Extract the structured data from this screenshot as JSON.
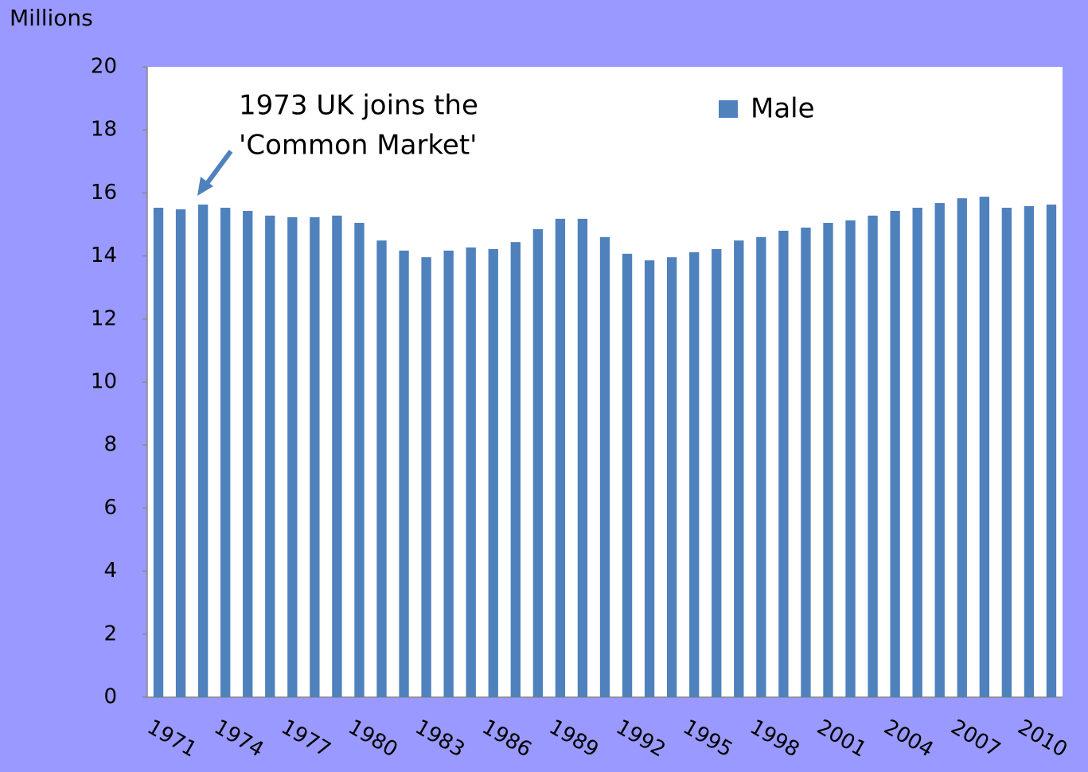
{
  "chart_data": {
    "type": "bar",
    "y_axis_label": "Millions",
    "annotation": [
      "1973 UK joins the",
      "'Common Market'"
    ],
    "categories": [
      "1971",
      null,
      null,
      "1974",
      null,
      null,
      "1977",
      null,
      null,
      "1980",
      null,
      null,
      "1983",
      null,
      null,
      "1986",
      null,
      null,
      "1989",
      null,
      null,
      "1992",
      null,
      null,
      "1995",
      null,
      null,
      "1998",
      null,
      null,
      "2001",
      null,
      null,
      "2004",
      null,
      null,
      "2007",
      null,
      null,
      "2010",
      null
    ],
    "series": [
      {
        "name": "Male",
        "color": "#4f81bd",
        "values": [
          15.53,
          15.48,
          15.63,
          15.53,
          15.43,
          15.28,
          15.23,
          15.23,
          15.28,
          15.05,
          14.49,
          14.17,
          13.96,
          14.17,
          14.27,
          14.22,
          14.44,
          14.85,
          15.18,
          15.18,
          14.6,
          14.07,
          13.86,
          13.96,
          14.12,
          14.22,
          14.49,
          14.6,
          14.8,
          14.9,
          15.05,
          15.13,
          15.28,
          15.43,
          15.53,
          15.68,
          15.83,
          15.88,
          15.53,
          15.58,
          15.63
        ]
      }
    ],
    "ylim": [
      0,
      20
    ],
    "yticks": [
      0,
      2,
      4,
      6,
      8,
      10,
      12,
      14,
      16,
      18,
      20
    ],
    "grid": false,
    "legend": "top-right"
  }
}
